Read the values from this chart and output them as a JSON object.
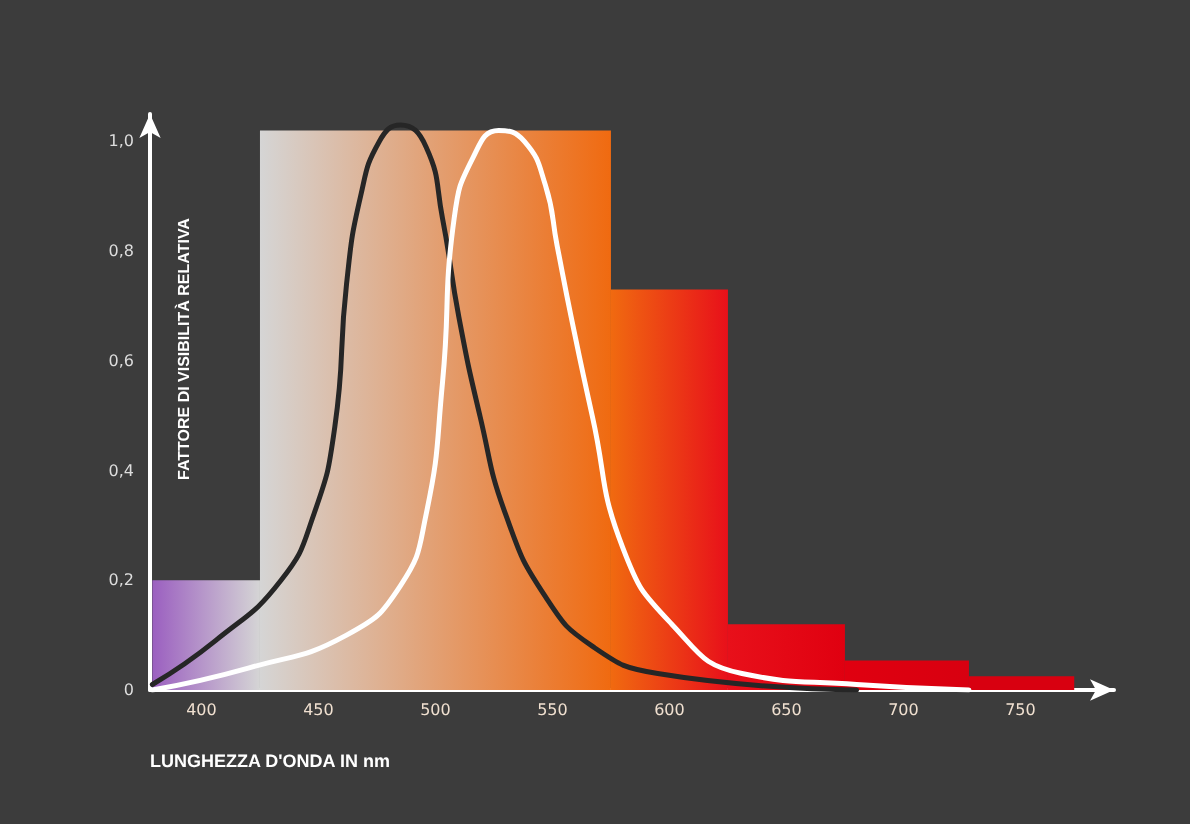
{
  "chart_data": {
    "type": "histogram",
    "xlabel": "LUNGHEZZA D'ONDA IN nm",
    "ylabel": "FATTORE DI VISIBILITÀ RELATIVA",
    "bins": [
      379,
      425,
      575,
      625,
      675,
      728,
      773
    ],
    "values": [
      0.2,
      1.02,
      0.73,
      0.12,
      0.054,
      0.025
    ],
    "colors": [
      "#9b5fc0",
      "#d5d5d5",
      "#f06a10",
      "#e8101a",
      "#e00010",
      "#d80010"
    ],
    "series": [
      {
        "type": "line",
        "color": "#262626",
        "x": [
          379,
          406,
          434,
          448,
          457,
          462,
          468,
          476,
          485,
          496,
          503,
          510,
          519,
          530,
          547,
          567,
          595,
          680
        ],
        "values": [
          0.01,
          0.09,
          0.2,
          0.32,
          0.48,
          0.74,
          0.9,
          1.0,
          1.03,
          0.99,
          0.86,
          0.68,
          0.5,
          0.32,
          0.17,
          0.08,
          0.03,
          0.0
        ]
      },
      {
        "type": "line",
        "color": "#ffffff",
        "x": [
          379,
          420,
          462,
          485,
          496,
          503,
          508,
          516,
          527,
          538,
          547,
          552,
          558,
          567,
          580,
          601,
          631,
          680,
          728
        ],
        "values": [
          0.0,
          0.04,
          0.1,
          0.19,
          0.32,
          0.56,
          0.86,
          0.97,
          1.02,
          1.0,
          0.92,
          0.81,
          0.68,
          0.5,
          0.26,
          0.12,
          0.03,
          0.01,
          0.0
        ]
      }
    ],
    "xlim": [
      378,
      790
    ],
    "xticks": [
      400,
      450,
      500,
      550,
      600,
      650,
      700,
      750
    ],
    "ylim": [
      0,
      1.05
    ],
    "yticks": [
      0,
      {
        "value": 0.2,
        "label": "0,2"
      },
      {
        "value": 0.4,
        "label": "0,4"
      },
      {
        "value": 0.6,
        "label": "0,6"
      },
      {
        "value": 0.8,
        "label": "0,8"
      },
      {
        "value": 1,
        "label": "1,0"
      }
    ],
    "grid": false,
    "marker": "none",
    "line_style": "solid"
  }
}
